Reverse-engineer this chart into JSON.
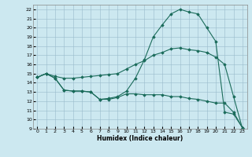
{
  "xlabel": "Humidex (Indice chaleur)",
  "background_color": "#cce8f0",
  "line_color": "#1a6b5a",
  "grid_color": "#99bbcc",
  "xlim": [
    -0.5,
    23.5
  ],
  "ylim": [
    9,
    22.5
  ],
  "xticks": [
    0,
    1,
    2,
    3,
    4,
    5,
    6,
    7,
    8,
    9,
    10,
    11,
    12,
    13,
    14,
    15,
    16,
    17,
    18,
    19,
    20,
    21,
    22,
    23
  ],
  "yticks": [
    9,
    10,
    11,
    12,
    13,
    14,
    15,
    16,
    17,
    18,
    19,
    20,
    21,
    22
  ],
  "line1_x": [
    0,
    1,
    2,
    3,
    4,
    5,
    6,
    7,
    8,
    9,
    10,
    11,
    12,
    13,
    14,
    15,
    16,
    17,
    18,
    19,
    20,
    21,
    22,
    23
  ],
  "line1_y": [
    14.6,
    15.0,
    14.5,
    13.2,
    13.1,
    13.1,
    13.0,
    12.2,
    12.3,
    12.5,
    13.1,
    14.5,
    16.5,
    19.0,
    20.3,
    21.5,
    22.0,
    21.7,
    21.5,
    20.0,
    18.5,
    10.8,
    10.6,
    9.1
  ],
  "line2_x": [
    0,
    1,
    2,
    3,
    4,
    5,
    6,
    7,
    8,
    9,
    10,
    11,
    12,
    13,
    14,
    15,
    16,
    17,
    18,
    19,
    20,
    21,
    22,
    23
  ],
  "line2_y": [
    14.6,
    15.0,
    14.7,
    14.5,
    14.5,
    14.6,
    14.7,
    14.8,
    14.9,
    15.0,
    15.5,
    16.0,
    16.4,
    17.0,
    17.3,
    17.7,
    17.8,
    17.6,
    17.5,
    17.3,
    16.8,
    16.0,
    12.5,
    9.0
  ],
  "line3_x": [
    0,
    1,
    2,
    3,
    4,
    5,
    6,
    7,
    8,
    9,
    10,
    11,
    12,
    13,
    14,
    15,
    16,
    17,
    18,
    19,
    20,
    21,
    22,
    23
  ],
  "line3_y": [
    14.6,
    15.0,
    14.5,
    13.2,
    13.1,
    13.1,
    13.0,
    12.2,
    12.2,
    12.4,
    12.8,
    12.8,
    12.7,
    12.7,
    12.7,
    12.5,
    12.5,
    12.3,
    12.2,
    12.0,
    11.8,
    11.8,
    10.8,
    9.1
  ]
}
